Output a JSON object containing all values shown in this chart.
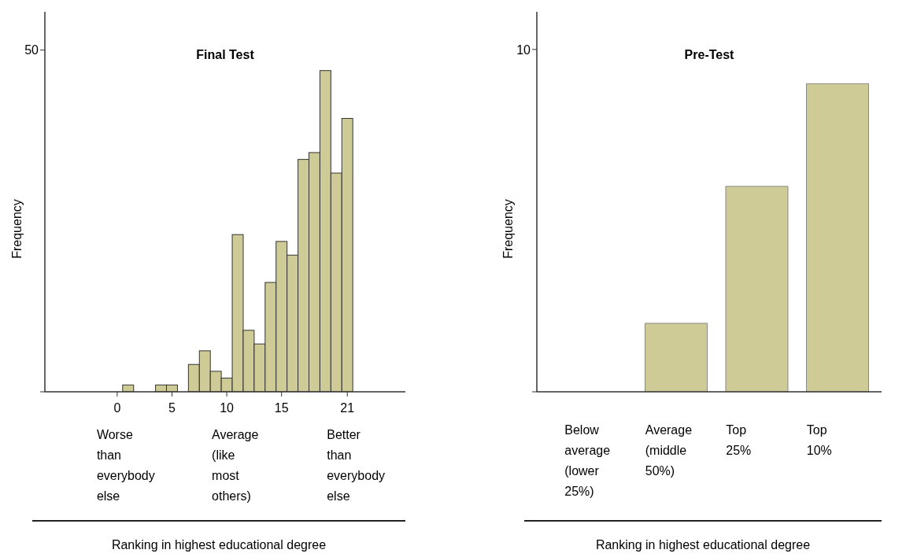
{
  "chart_data": [
    {
      "type": "bar",
      "title": "Final Test",
      "xlabel": "Ranking in highest educational degree",
      "ylabel": "Frequency",
      "color": "#cfcb96",
      "x": [
        0,
        1,
        2,
        3,
        4,
        5,
        6,
        7,
        8,
        9,
        10,
        11,
        12,
        13,
        14,
        15,
        16,
        17,
        18,
        19,
        20,
        21
      ],
      "values": [
        0,
        1,
        0,
        0,
        1,
        1,
        0,
        4,
        6,
        3,
        2,
        23,
        9,
        7,
        16,
        22,
        20,
        34,
        35,
        47,
        32,
        40
      ],
      "xlim": [
        -6.6,
        26.3
      ],
      "xticks": [
        0,
        5,
        10,
        15,
        21
      ],
      "ylim": [
        0,
        55.6
      ],
      "yticks": [
        {
          "value": 0,
          "label": null
        },
        50
      ],
      "annotations": [
        "Worse than everybody else",
        "Average (like most others)",
        "Better than everybody else"
      ]
    },
    {
      "type": "bar",
      "title": "Pre-Test",
      "xlabel": "Ranking in highest educational degree",
      "ylabel": "Frequency",
      "color": "#cfcb96",
      "categories": [
        "Below average (lower 25%)",
        "Average (middle 50%)",
        "Top 25%",
        "Top 10%"
      ],
      "values": [
        0,
        2,
        6,
        9
      ],
      "ylim": [
        0,
        11.1
      ],
      "yticks": [
        {
          "value": 0,
          "label": null
        },
        10
      ]
    }
  ]
}
